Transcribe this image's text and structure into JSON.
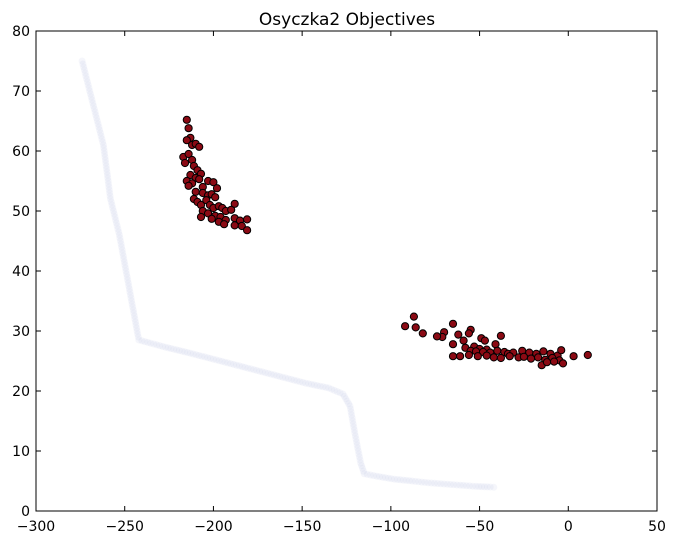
{
  "chart_data": {
    "type": "scatter",
    "title": "Osyczka2 Objectives",
    "xlabel": "",
    "ylabel": "",
    "xlim": [
      -300,
      50
    ],
    "ylim": [
      0,
      80
    ],
    "xticks": [
      -300,
      -250,
      -200,
      -150,
      -100,
      -50,
      0,
      50
    ],
    "yticks": [
      0,
      10,
      20,
      30,
      40,
      50,
      60,
      70,
      80
    ],
    "grid": false,
    "legend": "none",
    "colors": {
      "points": "#8b0a14",
      "point_edge": "#000000",
      "front": "#c8cbea",
      "axes": "#000000"
    },
    "pareto_front": [
      [
        -274,
        75
      ],
      [
        -268,
        68
      ],
      [
        -262,
        61
      ],
      [
        -258,
        52
      ],
      [
        -253,
        46
      ],
      [
        -248,
        38
      ],
      [
        -243,
        30
      ],
      [
        -242,
        28.5
      ],
      [
        -227,
        27.3
      ],
      [
        -213,
        26.3
      ],
      [
        -200,
        25.3
      ],
      [
        -187,
        24.3
      ],
      [
        -174,
        23.3
      ],
      [
        -161,
        22.3
      ],
      [
        -148,
        21.3
      ],
      [
        -135,
        20.5
      ],
      [
        -127,
        19.5
      ],
      [
        -123,
        17.5
      ],
      [
        -120,
        12.5
      ],
      [
        -117,
        8
      ],
      [
        -115,
        6.2
      ],
      [
        -108,
        5.8
      ],
      [
        -98,
        5.3
      ],
      [
        -88,
        5
      ],
      [
        -79,
        4.7
      ],
      [
        -70,
        4.5
      ],
      [
        -61,
        4.3
      ],
      [
        -52,
        4.1
      ],
      [
        -44,
        4
      ],
      [
        -40,
        3.9
      ]
    ],
    "series": [
      {
        "points": [
          [
            -215,
            65.2
          ],
          [
            -214,
            63.8
          ],
          [
            -213,
            62.2
          ],
          [
            -215,
            61.8
          ],
          [
            -212,
            61.0
          ],
          [
            -210,
            61.2
          ],
          [
            -208,
            60.7
          ],
          [
            -217,
            59.0
          ],
          [
            -214,
            59.5
          ],
          [
            -212,
            58.5
          ],
          [
            -216,
            58.0
          ],
          [
            -211,
            57.5
          ],
          [
            -209,
            56.8
          ],
          [
            -207,
            56.2
          ],
          [
            -213,
            56.0
          ],
          [
            -210,
            55.5
          ],
          [
            -215,
            55.0
          ],
          [
            -208,
            55.3
          ],
          [
            -212,
            54.6
          ],
          [
            -214,
            54.2
          ],
          [
            -206,
            54.0
          ],
          [
            -203,
            55.0
          ],
          [
            -200,
            54.8
          ],
          [
            -198,
            53.8
          ],
          [
            -210,
            53.2
          ],
          [
            -206,
            53.0
          ],
          [
            -203,
            52.6
          ],
          [
            -201,
            52.8
          ],
          [
            -199,
            52.3
          ],
          [
            -211,
            52.0
          ],
          [
            -209,
            51.5
          ],
          [
            -207,
            51.0
          ],
          [
            -204,
            51.8
          ],
          [
            -202,
            51.0
          ],
          [
            -200,
            50.5
          ],
          [
            -197,
            50.8
          ],
          [
            -195,
            50.5
          ],
          [
            -193,
            50.0
          ],
          [
            -190,
            50.2
          ],
          [
            -188,
            51.2
          ],
          [
            -206,
            50.0
          ],
          [
            -203,
            49.6
          ],
          [
            -199,
            49.2
          ],
          [
            -196,
            49.0
          ],
          [
            -193,
            48.5
          ],
          [
            -188,
            48.8
          ],
          [
            -185,
            48.4
          ],
          [
            -181,
            48.6
          ],
          [
            -207,
            49.0
          ],
          [
            -201,
            48.7
          ],
          [
            -197,
            48.2
          ],
          [
            -194,
            47.8
          ],
          [
            -188,
            47.6
          ],
          [
            -184,
            47.5
          ],
          [
            -181,
            46.8
          ]
        ]
      },
      {
        "points": [
          [
            -87,
            32.4
          ],
          [
            -92,
            30.8
          ],
          [
            -86,
            30.6
          ],
          [
            -82,
            29.6
          ],
          [
            -70,
            29.8
          ],
          [
            -65,
            31.2
          ],
          [
            -71,
            29.0
          ],
          [
            -62,
            29.4
          ],
          [
            -55,
            30.2
          ],
          [
            -56,
            29.6
          ],
          [
            -49,
            28.8
          ],
          [
            -47,
            28.4
          ],
          [
            -41,
            27.8
          ],
          [
            -38,
            29.2
          ],
          [
            -74,
            29.1
          ],
          [
            -59,
            28.4
          ],
          [
            -65,
            27.8
          ],
          [
            -58,
            27.2
          ],
          [
            -53,
            27.4
          ],
          [
            -50,
            27.0
          ],
          [
            -46,
            26.9
          ],
          [
            -55,
            26.7
          ],
          [
            -52,
            26.6
          ],
          [
            -48,
            26.5
          ],
          [
            -44,
            26.4
          ],
          [
            -40,
            26.7
          ],
          [
            -36,
            26.5
          ],
          [
            -34,
            26.2
          ],
          [
            -31,
            26.4
          ],
          [
            -26,
            26.7
          ],
          [
            -22,
            26.4
          ],
          [
            -18,
            26.2
          ],
          [
            -14,
            26.6
          ],
          [
            -10,
            26.2
          ],
          [
            -6,
            25.9
          ],
          [
            -4,
            26.8
          ],
          [
            -56,
            26.0
          ],
          [
            -61,
            25.8
          ],
          [
            -65,
            25.8
          ],
          [
            -51,
            25.8
          ],
          [
            -46,
            25.9
          ],
          [
            -42,
            25.6
          ],
          [
            -38,
            25.5
          ],
          [
            -33,
            25.8
          ],
          [
            -28,
            25.6
          ],
          [
            -25,
            25.7
          ],
          [
            -21,
            25.4
          ],
          [
            -17,
            25.6
          ],
          [
            -13,
            25.2
          ],
          [
            -9,
            25.5
          ],
          [
            -5,
            25.1
          ],
          [
            -3,
            24.6
          ],
          [
            -15,
            24.3
          ],
          [
            -12,
            24.8
          ],
          [
            -8,
            24.9
          ],
          [
            3,
            25.8
          ],
          [
            11,
            26.0
          ]
        ]
      }
    ]
  }
}
